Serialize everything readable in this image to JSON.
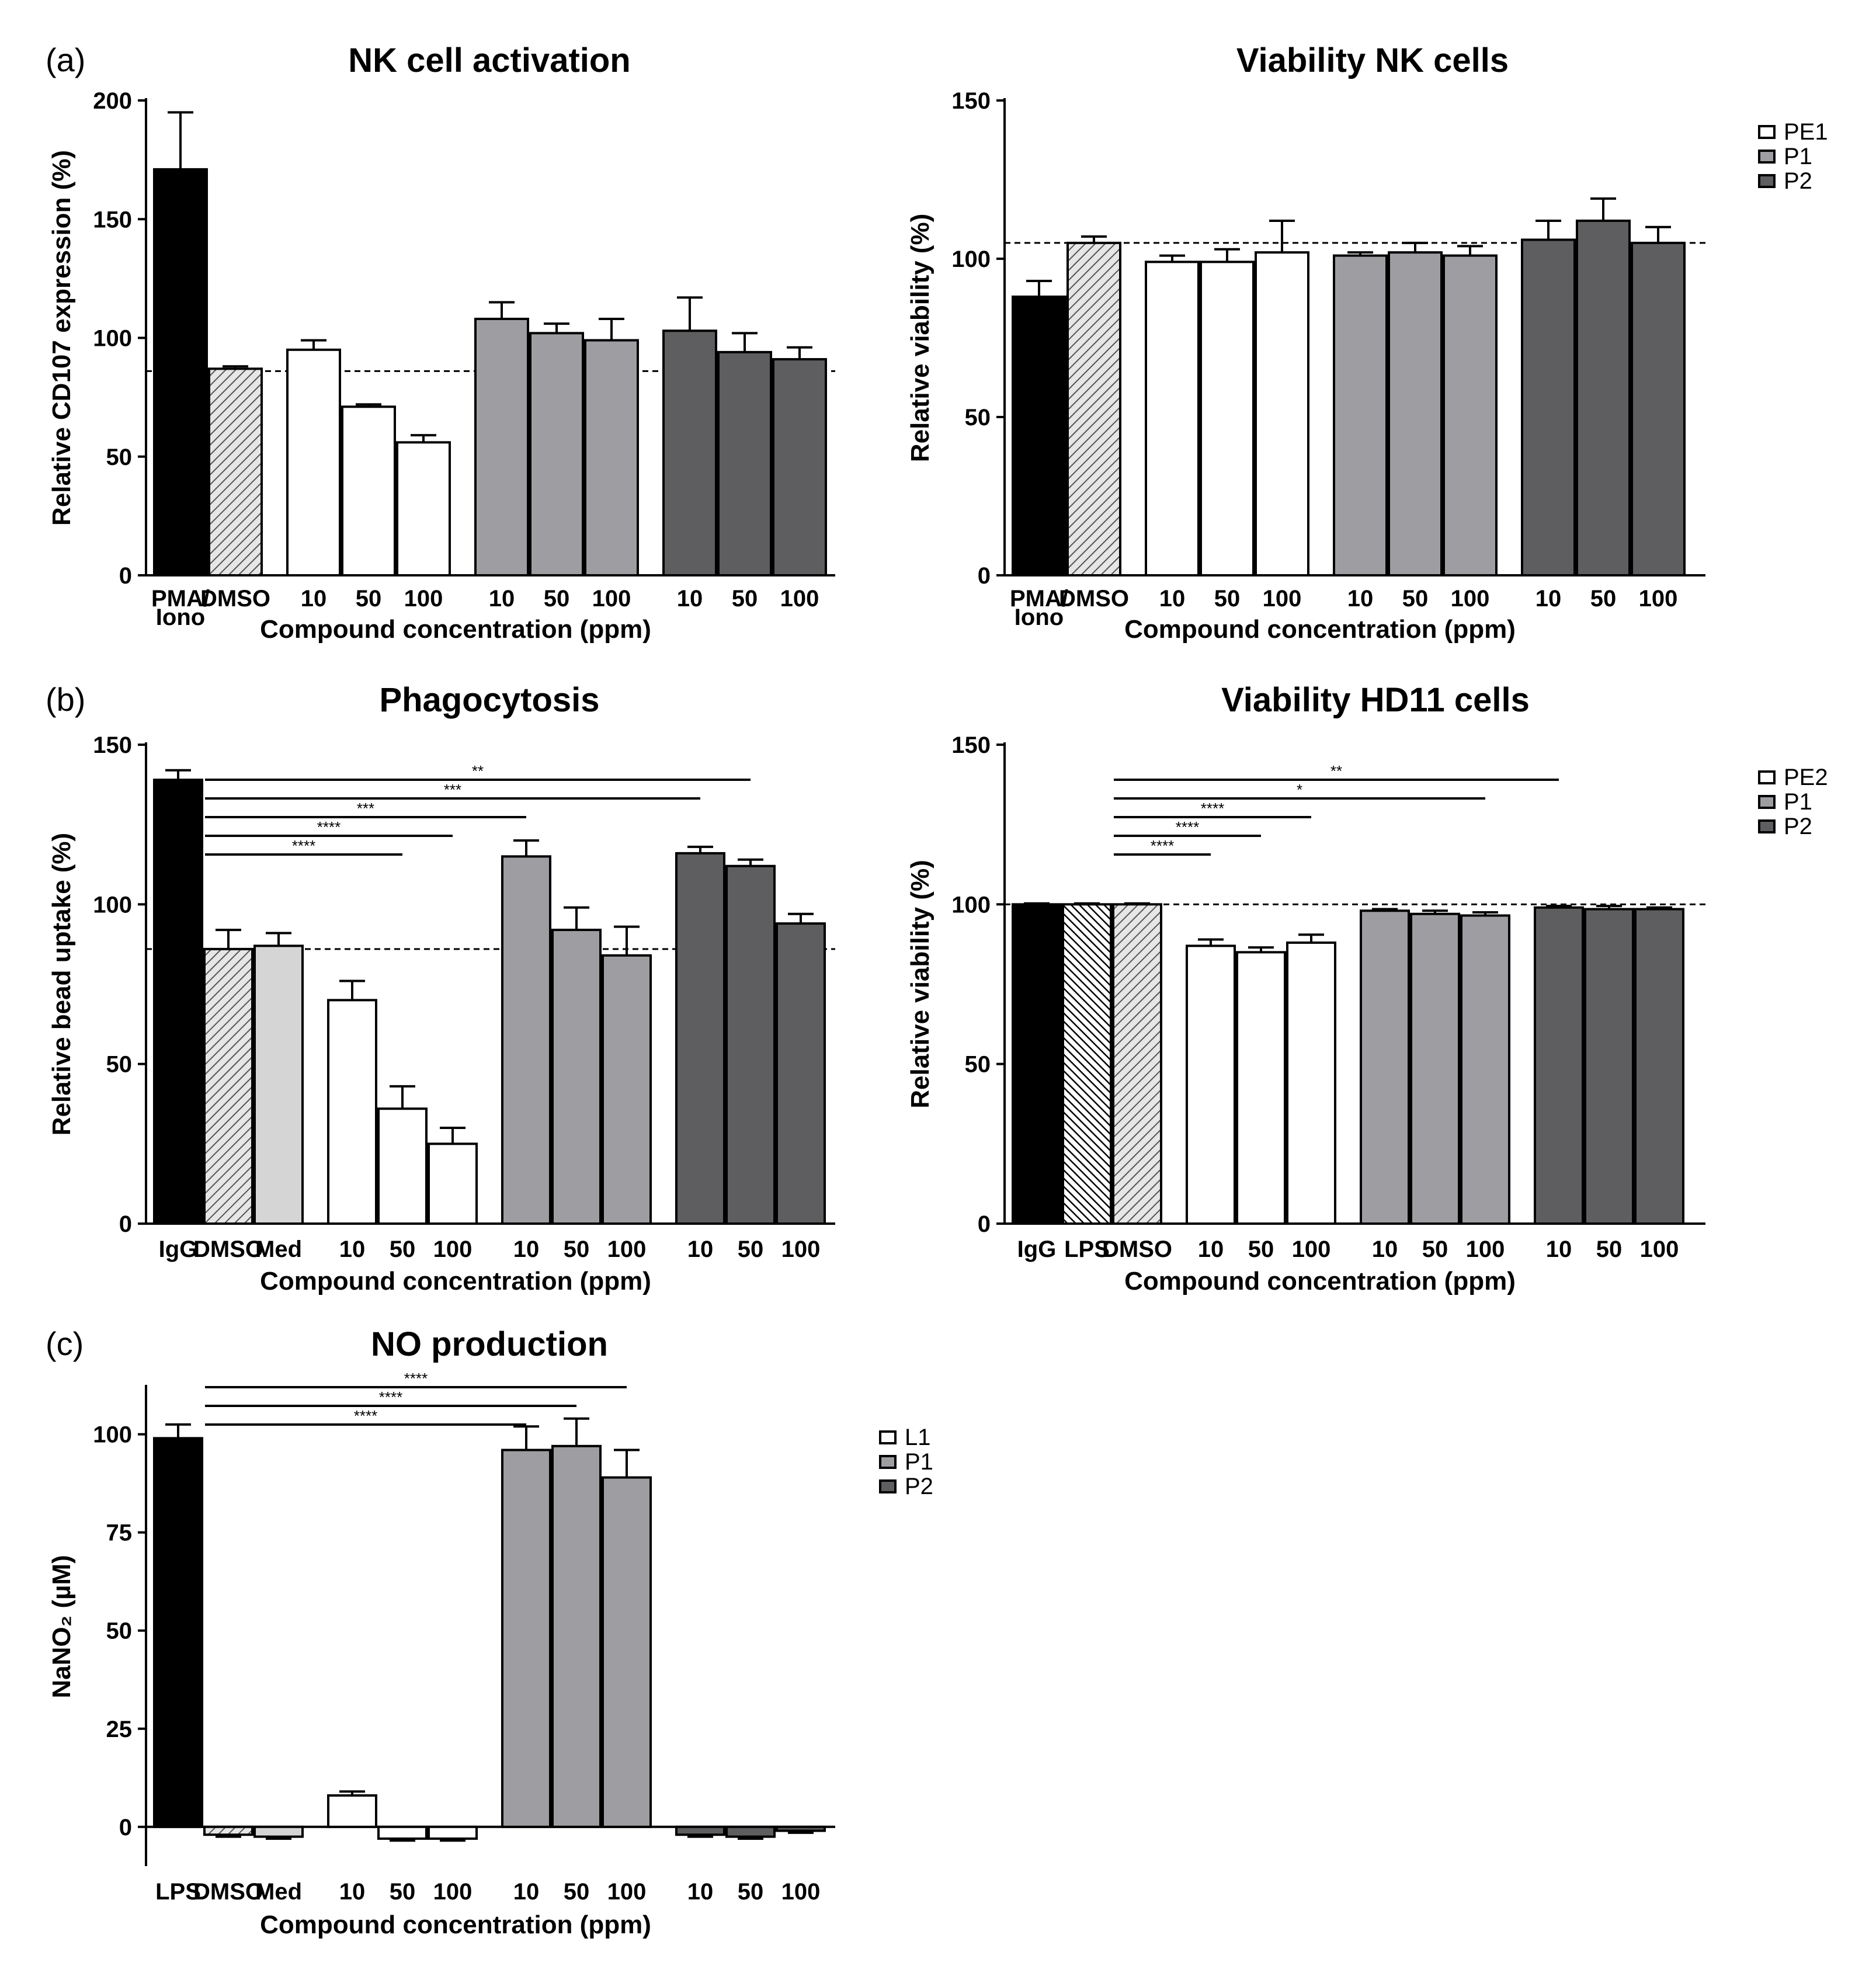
{
  "panel_labels": [
    "(a)",
    "(b)",
    "(c)"
  ],
  "colors": {
    "black": "#000000",
    "white": "#ffffff",
    "p1": "#9e9ea2",
    "p2": "#5e5e60",
    "medium": "#d5d5d5",
    "axis": "#000000"
  },
  "legends": [
    {
      "entries": [
        {
          "label": "PE1",
          "fill": "white"
        },
        {
          "label": "P1",
          "fill": "p1"
        },
        {
          "label": "P2",
          "fill": "p2"
        }
      ]
    },
    {
      "entries": [
        {
          "label": "PE2",
          "fill": "white"
        },
        {
          "label": "P1",
          "fill": "p1"
        },
        {
          "label": "P2",
          "fill": "p2"
        }
      ]
    },
    {
      "entries": [
        {
          "label": "L1",
          "fill": "white"
        },
        {
          "label": "P1",
          "fill": "p1"
        },
        {
          "label": "P2",
          "fill": "p2"
        }
      ]
    }
  ],
  "chart_data": [
    {
      "id": "nk-activation",
      "type": "bar",
      "title": "NK cell activation",
      "ylabel": "Relative CD107 expression (%)",
      "xlabel": "Compound concentration (ppm)",
      "ylim": [
        0,
        200
      ],
      "yticks": [
        0,
        50,
        100,
        150,
        200
      ],
      "reference_line": 86,
      "groups": [
        1,
        1,
        3,
        3,
        3
      ],
      "categories": [
        "PMA/ Iono",
        "DMSO",
        "10",
        "50",
        "100",
        "10",
        "50",
        "100",
        "10",
        "50",
        "100"
      ],
      "values": [
        171,
        87,
        95,
        71,
        56,
        108,
        102,
        99,
        103,
        94,
        91
      ],
      "errors": [
        24,
        1,
        4,
        1,
        3,
        7,
        4,
        9,
        14,
        8,
        5
      ],
      "fills": [
        "black",
        "hatch",
        "white",
        "white",
        "white",
        "p1",
        "p1",
        "p1",
        "p2",
        "p2",
        "p2"
      ],
      "significance": []
    },
    {
      "id": "nk-viability",
      "type": "bar",
      "title": "Viability NK cells",
      "ylabel": "Relative viability (%)",
      "xlabel": "Compound concentration (ppm)",
      "ylim": [
        0,
        150
      ],
      "yticks": [
        0,
        50,
        100,
        150
      ],
      "reference_line": 105,
      "groups": [
        1,
        1,
        3,
        3,
        3
      ],
      "categories": [
        "PMA/ Iono",
        "DMSO",
        "10",
        "50",
        "100",
        "10",
        "50",
        "100",
        "10",
        "50",
        "100"
      ],
      "values": [
        88,
        105,
        99,
        99,
        102,
        101,
        102,
        101,
        106,
        112,
        105
      ],
      "errors": [
        5,
        2,
        2,
        4,
        10,
        1,
        3,
        3,
        6,
        7,
        5
      ],
      "fills": [
        "black",
        "hatch",
        "white",
        "white",
        "white",
        "p1",
        "p1",
        "p1",
        "p2",
        "p2",
        "p2"
      ],
      "significance": []
    },
    {
      "id": "phagocytosis",
      "type": "bar",
      "title": "Phagocytosis",
      "ylabel": "Relative bead uptake (%)",
      "xlabel": "Compound concentration (ppm)",
      "ylim": [
        0,
        150
      ],
      "yticks": [
        0,
        50,
        100,
        150
      ],
      "reference_line": 86,
      "groups": [
        1,
        1,
        1,
        3,
        3,
        3
      ],
      "categories": [
        "IgG",
        "DMSO",
        "Med",
        "10",
        "50",
        "100",
        "10",
        "50",
        "100",
        "10",
        "50",
        "100"
      ],
      "values": [
        139,
        86,
        87,
        70,
        36,
        25,
        115,
        92,
        84,
        116,
        112,
        94
      ],
      "errors": [
        3,
        6,
        4,
        6,
        7,
        5,
        5,
        7,
        9,
        2,
        2,
        3
      ],
      "fills": [
        "black",
        "hatch",
        "medium",
        "white",
        "white",
        "white",
        "p1",
        "p1",
        "p1",
        "p2",
        "p2",
        "p2"
      ],
      "significance": [
        {
          "from": 1,
          "to": 10,
          "label": "**"
        },
        {
          "from": 1,
          "to": 9,
          "label": "***"
        },
        {
          "from": 1,
          "to": 6,
          "label": "***"
        },
        {
          "from": 1,
          "to": 5,
          "label": "****"
        },
        {
          "from": 1,
          "to": 4,
          "label": "****"
        }
      ]
    },
    {
      "id": "hd11-viability",
      "type": "bar",
      "title": "Viability HD11 cells",
      "ylabel": "Relative viability (%)",
      "xlabel": "Compound concentration (ppm)",
      "ylim": [
        0,
        150
      ],
      "yticks": [
        0,
        50,
        100,
        150
      ],
      "reference_line": 100,
      "groups": [
        1,
        1,
        1,
        3,
        3,
        3
      ],
      "categories": [
        "IgG",
        "LPS",
        "DMSO",
        "10",
        "50",
        "100",
        "10",
        "50",
        "100",
        "10",
        "50",
        "100"
      ],
      "values": [
        100,
        100,
        100,
        87,
        85,
        88,
        98,
        97,
        96.5,
        99,
        98.5,
        98.5
      ],
      "errors": [
        0.3,
        0.3,
        0.3,
        2,
        1.5,
        2.5,
        0.5,
        1,
        1,
        0.5,
        1,
        0.5
      ],
      "fills": [
        "black",
        "hatch2",
        "hatch",
        "white",
        "white",
        "white",
        "p1",
        "p1",
        "p1",
        "p2",
        "p2",
        "p2"
      ],
      "significance": [
        {
          "from": 2,
          "to": 9,
          "label": "**"
        },
        {
          "from": 2,
          "to": 8,
          "label": "*"
        },
        {
          "from": 2,
          "to": 5,
          "label": "****"
        },
        {
          "from": 2,
          "to": 4,
          "label": "****"
        },
        {
          "from": 2,
          "to": 3,
          "label": "****"
        }
      ]
    },
    {
      "id": "no-production",
      "type": "bar",
      "title": "NO production",
      "ylabel": "NaNO₂ (µM)",
      "xlabel": "Compound concentration (ppm)",
      "ylim": [
        -10,
        112
      ],
      "yticks": [
        0,
        25,
        50,
        75,
        100
      ],
      "reference_line": null,
      "groups": [
        1,
        1,
        1,
        3,
        3,
        3
      ],
      "categories": [
        "LPS",
        "DMSO",
        "Med",
        "10",
        "50",
        "100",
        "10",
        "50",
        "100",
        "10",
        "50",
        "100"
      ],
      "values": [
        99,
        -2,
        -2.5,
        8,
        -3,
        -3,
        96,
        97,
        89,
        -2,
        -2.5,
        -1
      ],
      "errors": [
        3.5,
        0.5,
        0.5,
        1,
        0.5,
        0.5,
        6,
        7,
        7,
        0.5,
        0.5,
        0.5
      ],
      "fills": [
        "black",
        "hatch",
        "medium",
        "white",
        "white",
        "white",
        "p1",
        "p1",
        "p1",
        "p2",
        "p2",
        "p2"
      ],
      "significance": [
        {
          "from": 1,
          "to": 8,
          "label": "****"
        },
        {
          "from": 1,
          "to": 7,
          "label": "****"
        },
        {
          "from": 1,
          "to": 6,
          "label": "****"
        }
      ]
    }
  ]
}
